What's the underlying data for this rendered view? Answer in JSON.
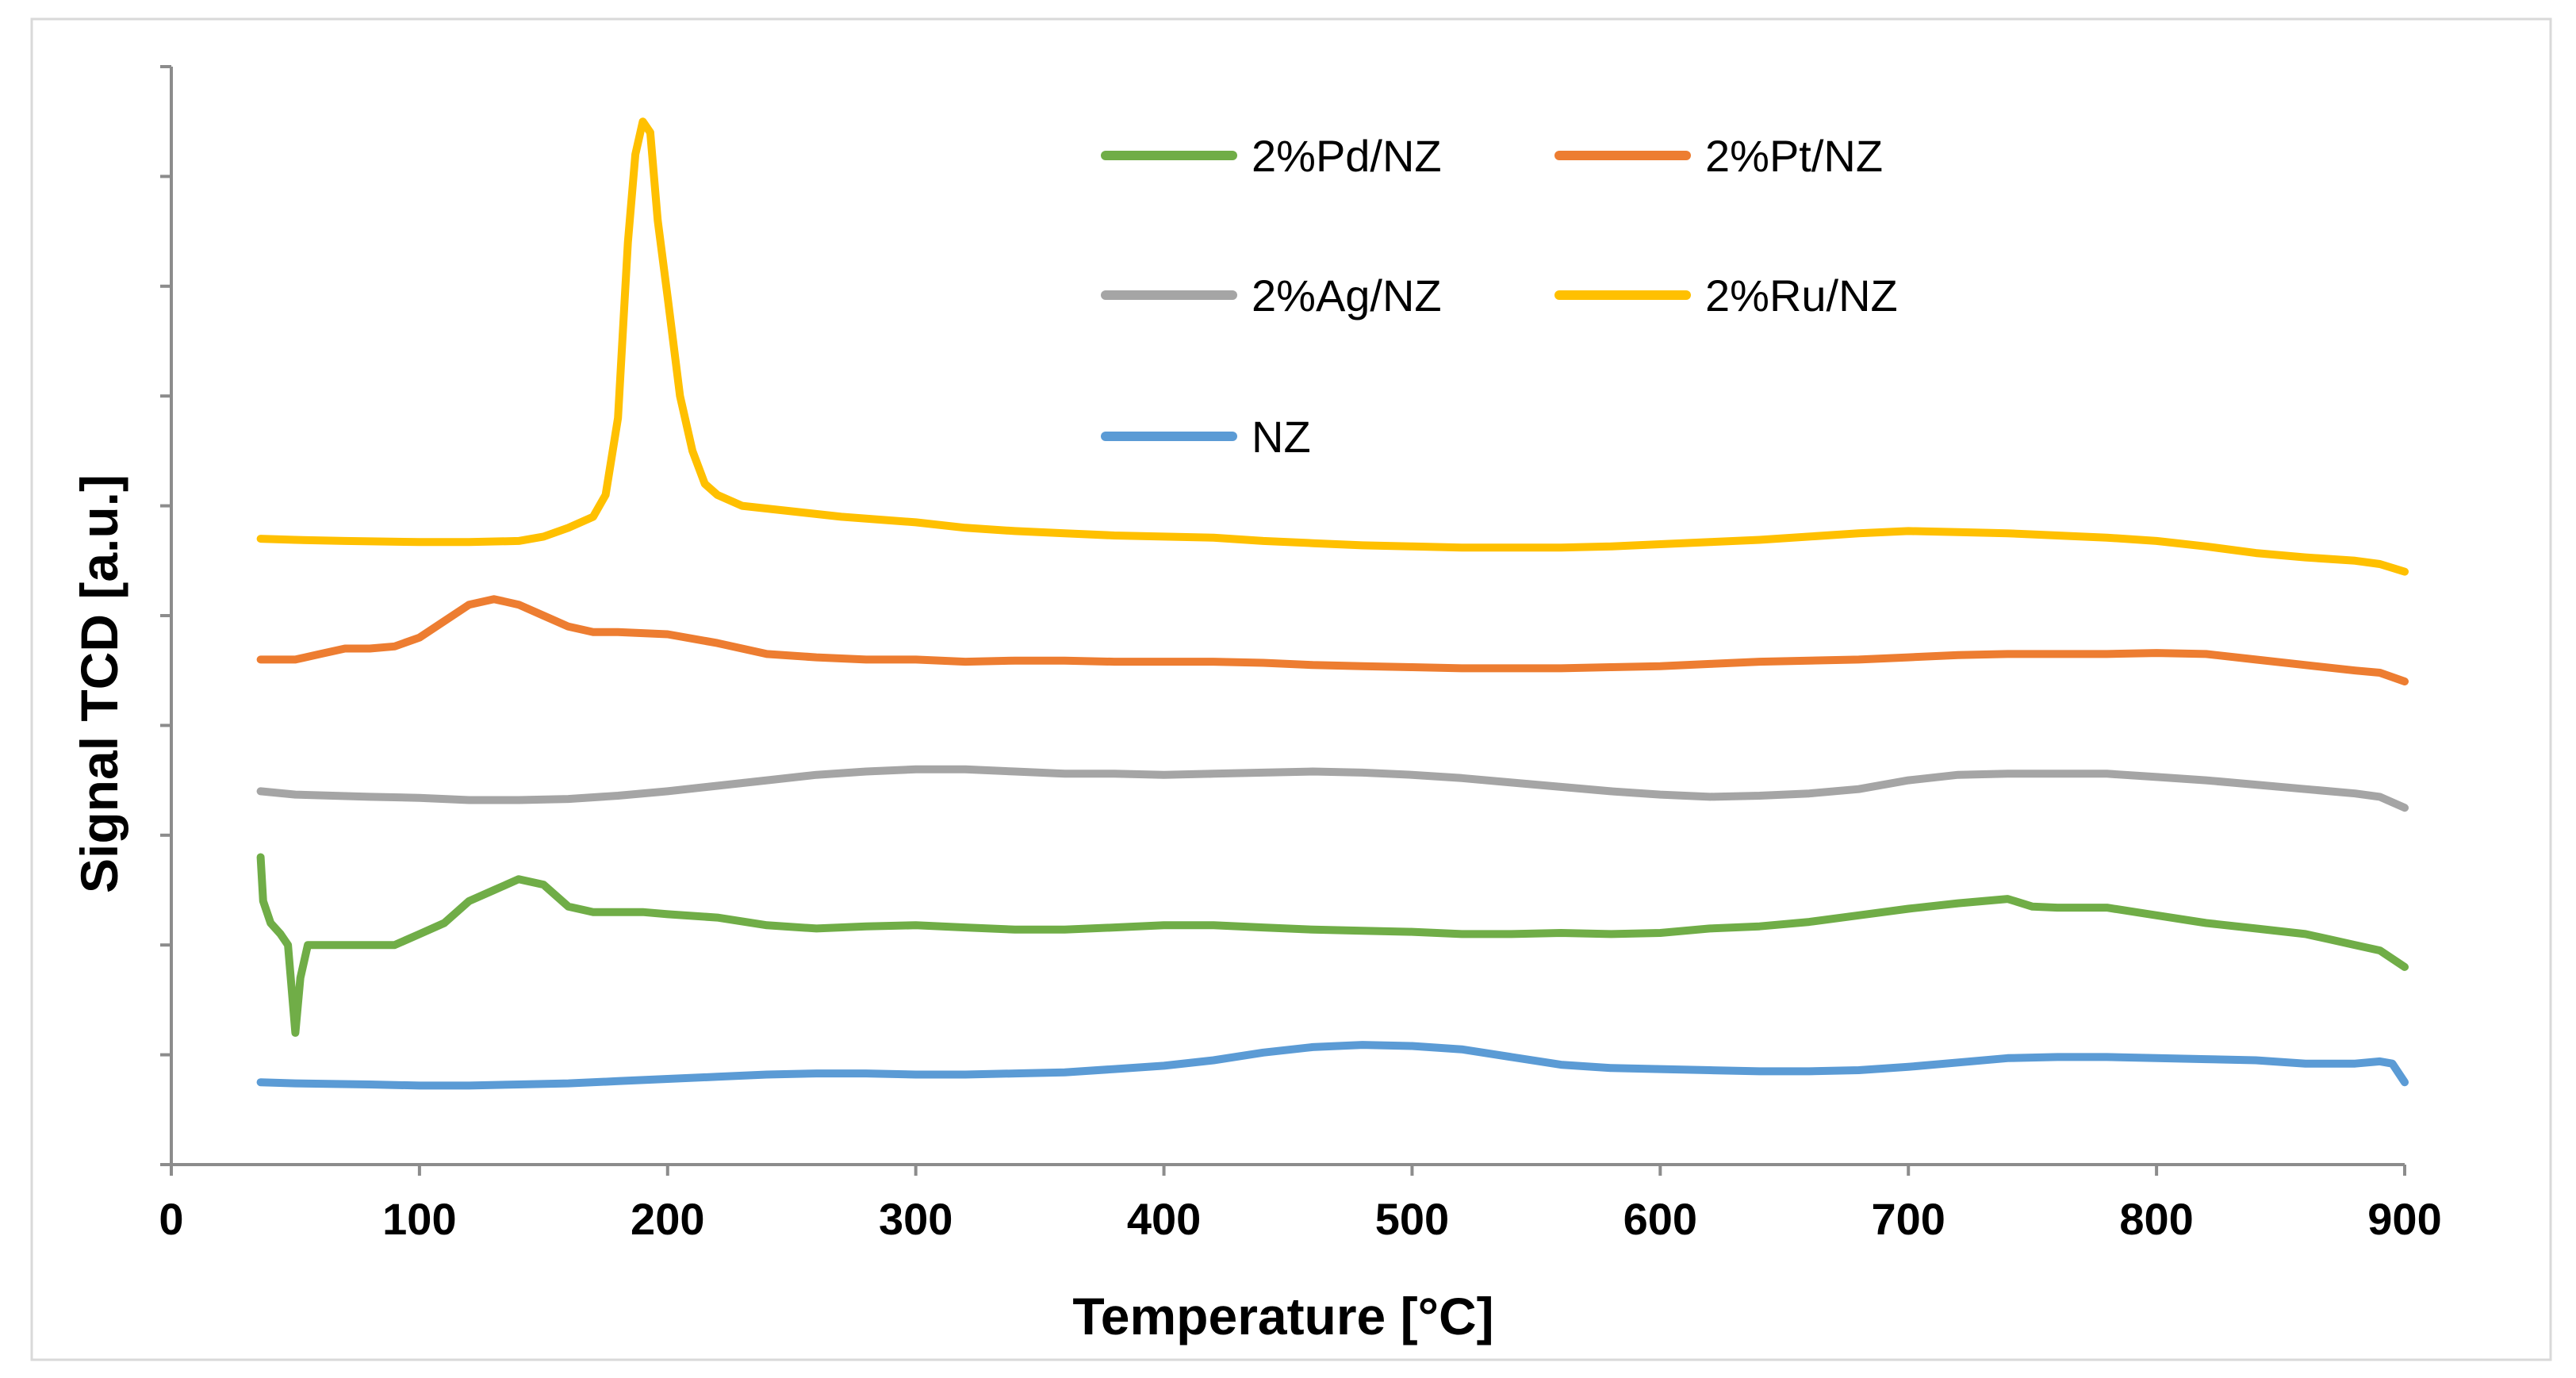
{
  "chart_data": {
    "type": "line",
    "title": "",
    "xlabel": "Temperature [°C]",
    "ylabel": "Signal TCD [a.u.]",
    "xlim": [
      0,
      900
    ],
    "ylim": [
      0,
      100
    ],
    "x_ticks": [
      "0",
      "100",
      "200",
      "300",
      "400",
      "500",
      "600",
      "700",
      "800",
      "900"
    ],
    "y_ticks_count": 10,
    "y_tick_labels_shown": false,
    "grid": false,
    "legend_position": "top-center",
    "series": [
      {
        "name": "2%Pd/NZ",
        "color": "#70AD47",
        "points": [
          [
            36,
            28
          ],
          [
            37,
            24
          ],
          [
            40,
            22
          ],
          [
            44,
            21
          ],
          [
            47,
            20
          ],
          [
            50,
            12
          ],
          [
            52,
            17
          ],
          [
            55,
            20
          ],
          [
            60,
            20
          ],
          [
            70,
            20
          ],
          [
            80,
            20
          ],
          [
            90,
            20
          ],
          [
            100,
            21
          ],
          [
            110,
            22
          ],
          [
            120,
            24
          ],
          [
            130,
            25
          ],
          [
            140,
            26
          ],
          [
            150,
            25.5
          ],
          [
            160,
            23.5
          ],
          [
            170,
            23
          ],
          [
            180,
            23
          ],
          [
            190,
            23
          ],
          [
            200,
            22.8
          ],
          [
            220,
            22.5
          ],
          [
            240,
            21.8
          ],
          [
            260,
            21.5
          ],
          [
            280,
            21.7
          ],
          [
            300,
            21.8
          ],
          [
            320,
            21.6
          ],
          [
            340,
            21.4
          ],
          [
            360,
            21.4
          ],
          [
            380,
            21.6
          ],
          [
            400,
            21.8
          ],
          [
            420,
            21.8
          ],
          [
            440,
            21.6
          ],
          [
            460,
            21.4
          ],
          [
            480,
            21.3
          ],
          [
            500,
            21.2
          ],
          [
            520,
            21
          ],
          [
            540,
            21
          ],
          [
            560,
            21.1
          ],
          [
            580,
            21
          ],
          [
            600,
            21.1
          ],
          [
            620,
            21.5
          ],
          [
            640,
            21.7
          ],
          [
            660,
            22.1
          ],
          [
            680,
            22.7
          ],
          [
            700,
            23.3
          ],
          [
            720,
            23.8
          ],
          [
            740,
            24.2
          ],
          [
            750,
            23.5
          ],
          [
            760,
            23.4
          ],
          [
            780,
            23.4
          ],
          [
            800,
            22.7
          ],
          [
            820,
            22
          ],
          [
            840,
            21.5
          ],
          [
            860,
            21
          ],
          [
            870,
            20.5
          ],
          [
            880,
            20
          ],
          [
            890,
            19.5
          ],
          [
            900,
            18
          ]
        ]
      },
      {
        "name": "2%Pt/NZ",
        "color": "#ED7D31",
        "points": [
          [
            36,
            46
          ],
          [
            50,
            46
          ],
          [
            60,
            46.5
          ],
          [
            70,
            47
          ],
          [
            80,
            47
          ],
          [
            90,
            47.2
          ],
          [
            100,
            48
          ],
          [
            110,
            49.5
          ],
          [
            120,
            51
          ],
          [
            130,
            51.5
          ],
          [
            140,
            51
          ],
          [
            150,
            50
          ],
          [
            160,
            49
          ],
          [
            170,
            48.5
          ],
          [
            180,
            48.5
          ],
          [
            200,
            48.3
          ],
          [
            220,
            47.5
          ],
          [
            240,
            46.5
          ],
          [
            260,
            46.2
          ],
          [
            280,
            46
          ],
          [
            300,
            46
          ],
          [
            320,
            45.8
          ],
          [
            340,
            45.9
          ],
          [
            360,
            45.9
          ],
          [
            380,
            45.8
          ],
          [
            400,
            45.8
          ],
          [
            420,
            45.8
          ],
          [
            440,
            45.7
          ],
          [
            460,
            45.5
          ],
          [
            480,
            45.4
          ],
          [
            500,
            45.3
          ],
          [
            520,
            45.2
          ],
          [
            540,
            45.2
          ],
          [
            560,
            45.2
          ],
          [
            580,
            45.3
          ],
          [
            600,
            45.4
          ],
          [
            620,
            45.6
          ],
          [
            640,
            45.8
          ],
          [
            660,
            45.9
          ],
          [
            680,
            46
          ],
          [
            700,
            46.2
          ],
          [
            720,
            46.4
          ],
          [
            740,
            46.5
          ],
          [
            760,
            46.5
          ],
          [
            780,
            46.5
          ],
          [
            800,
            46.6
          ],
          [
            820,
            46.5
          ],
          [
            840,
            46
          ],
          [
            860,
            45.5
          ],
          [
            880,
            45
          ],
          [
            890,
            44.8
          ],
          [
            900,
            44
          ]
        ]
      },
      {
        "name": "2%Ag/NZ",
        "color": "#A5A5A5",
        "points": [
          [
            36,
            34
          ],
          [
            50,
            33.7
          ],
          [
            80,
            33.5
          ],
          [
            100,
            33.4
          ],
          [
            120,
            33.2
          ],
          [
            140,
            33.2
          ],
          [
            160,
            33.3
          ],
          [
            180,
            33.6
          ],
          [
            200,
            34
          ],
          [
            220,
            34.5
          ],
          [
            240,
            35
          ],
          [
            260,
            35.5
          ],
          [
            280,
            35.8
          ],
          [
            300,
            36
          ],
          [
            320,
            36
          ],
          [
            340,
            35.8
          ],
          [
            360,
            35.6
          ],
          [
            380,
            35.6
          ],
          [
            400,
            35.5
          ],
          [
            420,
            35.6
          ],
          [
            440,
            35.7
          ],
          [
            460,
            35.8
          ],
          [
            480,
            35.7
          ],
          [
            500,
            35.5
          ],
          [
            520,
            35.2
          ],
          [
            540,
            34.8
          ],
          [
            560,
            34.4
          ],
          [
            580,
            34
          ],
          [
            600,
            33.7
          ],
          [
            620,
            33.5
          ],
          [
            640,
            33.6
          ],
          [
            660,
            33.8
          ],
          [
            680,
            34.2
          ],
          [
            700,
            35
          ],
          [
            720,
            35.5
          ],
          [
            740,
            35.6
          ],
          [
            760,
            35.6
          ],
          [
            780,
            35.6
          ],
          [
            800,
            35.3
          ],
          [
            820,
            35
          ],
          [
            840,
            34.6
          ],
          [
            860,
            34.2
          ],
          [
            880,
            33.8
          ],
          [
            890,
            33.5
          ],
          [
            900,
            32.5
          ]
        ]
      },
      {
        "name": "2%Ru/NZ",
        "color": "#FFC000",
        "points": [
          [
            36,
            57
          ],
          [
            50,
            56.9
          ],
          [
            70,
            56.8
          ],
          [
            100,
            56.7
          ],
          [
            120,
            56.7
          ],
          [
            140,
            56.8
          ],
          [
            150,
            57.2
          ],
          [
            160,
            58
          ],
          [
            170,
            59
          ],
          [
            175,
            61
          ],
          [
            180,
            68
          ],
          [
            184,
            84
          ],
          [
            187,
            92
          ],
          [
            190,
            95
          ],
          [
            193,
            94
          ],
          [
            196,
            86
          ],
          [
            200,
            79
          ],
          [
            205,
            70
          ],
          [
            210,
            65
          ],
          [
            215,
            62
          ],
          [
            220,
            61
          ],
          [
            230,
            60
          ],
          [
            250,
            59.5
          ],
          [
            270,
            59
          ],
          [
            300,
            58.5
          ],
          [
            320,
            58
          ],
          [
            340,
            57.7
          ],
          [
            360,
            57.5
          ],
          [
            380,
            57.3
          ],
          [
            400,
            57.2
          ],
          [
            420,
            57.1
          ],
          [
            440,
            56.8
          ],
          [
            460,
            56.6
          ],
          [
            480,
            56.4
          ],
          [
            500,
            56.3
          ],
          [
            520,
            56.2
          ],
          [
            540,
            56.2
          ],
          [
            560,
            56.2
          ],
          [
            580,
            56.3
          ],
          [
            600,
            56.5
          ],
          [
            620,
            56.7
          ],
          [
            640,
            56.9
          ],
          [
            660,
            57.2
          ],
          [
            680,
            57.5
          ],
          [
            700,
            57.7
          ],
          [
            720,
            57.6
          ],
          [
            740,
            57.5
          ],
          [
            760,
            57.3
          ],
          [
            780,
            57.1
          ],
          [
            800,
            56.8
          ],
          [
            820,
            56.3
          ],
          [
            840,
            55.7
          ],
          [
            860,
            55.3
          ],
          [
            880,
            55
          ],
          [
            890,
            54.7
          ],
          [
            900,
            54
          ]
        ]
      },
      {
        "name": "NZ",
        "color": "#5B9BD5",
        "points": [
          [
            36,
            7.5
          ],
          [
            50,
            7.4
          ],
          [
            80,
            7.3
          ],
          [
            100,
            7.2
          ],
          [
            120,
            7.2
          ],
          [
            140,
            7.3
          ],
          [
            160,
            7.4
          ],
          [
            180,
            7.6
          ],
          [
            200,
            7.8
          ],
          [
            220,
            8
          ],
          [
            240,
            8.2
          ],
          [
            260,
            8.3
          ],
          [
            280,
            8.3
          ],
          [
            300,
            8.2
          ],
          [
            320,
            8.2
          ],
          [
            340,
            8.3
          ],
          [
            360,
            8.4
          ],
          [
            380,
            8.7
          ],
          [
            400,
            9
          ],
          [
            420,
            9.5
          ],
          [
            440,
            10.2
          ],
          [
            460,
            10.7
          ],
          [
            480,
            10.9
          ],
          [
            500,
            10.8
          ],
          [
            520,
            10.5
          ],
          [
            540,
            9.8
          ],
          [
            560,
            9.1
          ],
          [
            580,
            8.8
          ],
          [
            600,
            8.7
          ],
          [
            620,
            8.6
          ],
          [
            640,
            8.5
          ],
          [
            660,
            8.5
          ],
          [
            680,
            8.6
          ],
          [
            700,
            8.9
          ],
          [
            720,
            9.3
          ],
          [
            740,
            9.7
          ],
          [
            760,
            9.8
          ],
          [
            780,
            9.8
          ],
          [
            800,
            9.7
          ],
          [
            820,
            9.6
          ],
          [
            840,
            9.5
          ],
          [
            860,
            9.2
          ],
          [
            880,
            9.2
          ],
          [
            890,
            9.4
          ],
          [
            895,
            9.2
          ],
          [
            900,
            7.5
          ]
        ]
      }
    ]
  }
}
